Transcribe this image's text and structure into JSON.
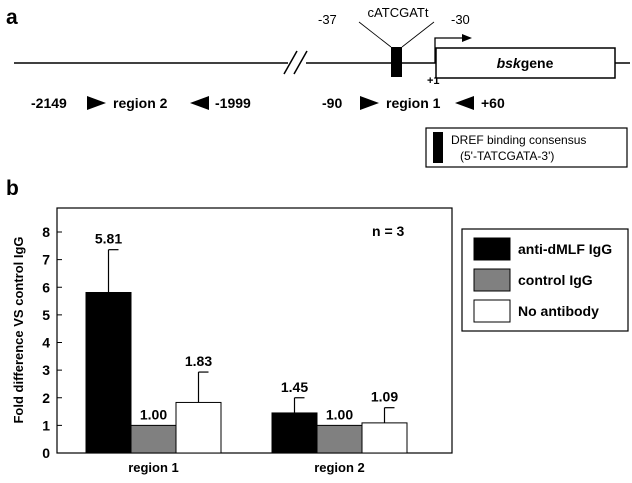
{
  "panel_a": {
    "label": "a",
    "site_left": "-37",
    "site_seq": "cATCGATt",
    "site_right": "-30",
    "tss_label": "+1",
    "gene_name_italic": "bsk",
    "gene_name_rest": "gene",
    "region2": {
      "start": "-2149",
      "name": "region 2",
      "end": "-1999"
    },
    "region1": {
      "start": "-90",
      "name": "region 1",
      "end": "+60"
    },
    "legend_line1": "DREF binding consensus",
    "legend_line2": "(5'-TATCGATA-3')"
  },
  "panel_b": {
    "label": "b"
  },
  "chart_data": {
    "type": "bar",
    "title": "",
    "xlabel": "",
    "ylabel": "Fold difference VS control IgG",
    "ylim": [
      0,
      8
    ],
    "yticks": [
      "0",
      "1",
      "2",
      "3",
      "4",
      "5",
      "6",
      "7",
      "8"
    ],
    "categories": [
      "region 1",
      "region 2"
    ],
    "annotation": "n = 3",
    "series": [
      {
        "name": "anti-dMLF IgG",
        "color": "#000000",
        "values": [
          5.81,
          1.45
        ],
        "errors": [
          1.55,
          0.55
        ],
        "labels": [
          "5.81",
          "1.45"
        ]
      },
      {
        "name": "control IgG",
        "color": "#808080",
        "values": [
          1.0,
          1.0
        ],
        "errors": [
          0,
          0
        ],
        "labels": [
          "1.00",
          "1.00"
        ]
      },
      {
        "name": "No antibody",
        "color": "#ffffff",
        "values": [
          1.83,
          1.09
        ],
        "errors": [
          1.1,
          0.55
        ],
        "labels": [
          "1.83",
          "1.09"
        ]
      }
    ],
    "legend_position": "right"
  }
}
